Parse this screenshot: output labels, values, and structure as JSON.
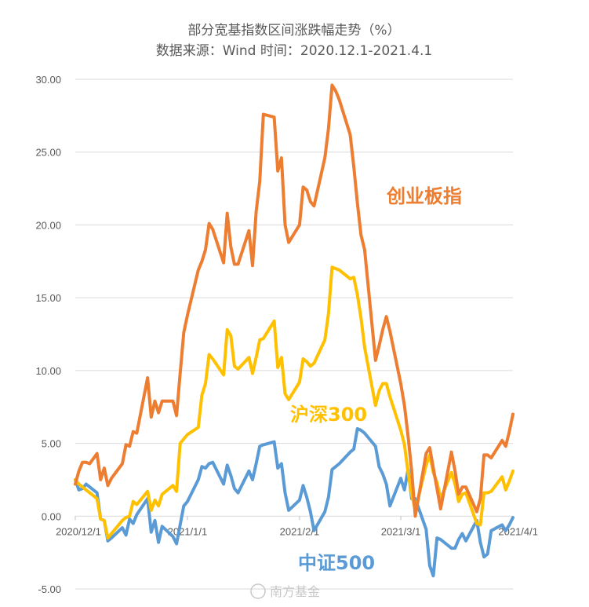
{
  "chart_data": {
    "type": "line",
    "title": "部分宽基指数区间涨跌幅走势（%）",
    "subtitle": "数据来源：Wind 时间：2020.12.1-2021.4.1",
    "xlabel": "",
    "ylabel": "",
    "ylim": [
      -5,
      30
    ],
    "y_ticks": [
      "30.00",
      "25.00",
      "20.00",
      "15.00",
      "10.00",
      "5.00",
      "0.00",
      "-5.00"
    ],
    "x_tick_labels": [
      "2020/12/1",
      "2021/1/1",
      "2021/2/1",
      "2021/3/1",
      "2021/4/1"
    ],
    "x_tick_days": [
      0,
      31,
      62,
      90,
      121
    ],
    "grid": true,
    "legend": "inline labels",
    "series": [
      {
        "name": "创业板指",
        "color": "#ed7d31",
        "x": [
          0,
          1,
          2,
          3,
          4,
          6,
          7,
          8,
          9,
          10,
          13,
          14,
          15,
          16,
          17,
          20,
          21,
          22,
          23,
          24,
          27,
          28,
          29,
          30,
          31,
          34,
          35,
          36,
          37,
          38,
          41,
          42,
          43,
          44,
          45,
          48,
          49,
          50,
          51,
          52,
          55,
          56,
          57,
          58,
          59,
          62,
          63,
          64,
          65,
          66,
          69,
          70,
          71,
          72,
          73,
          76,
          77,
          78,
          79,
          80,
          83,
          84,
          85,
          86,
          87,
          90,
          91,
          92,
          93,
          94,
          97,
          98,
          99,
          100,
          101,
          104,
          105,
          106,
          107,
          108,
          111,
          112,
          113,
          114,
          115,
          118,
          119,
          120,
          121
        ],
        "y": [
          2.2,
          3.1,
          3.7,
          3.7,
          3.6,
          4.3,
          2.5,
          3.3,
          2.1,
          2.6,
          3.6,
          4.9,
          4.8,
          5.8,
          5.7,
          9.5,
          6.8,
          7.9,
          7.1,
          7.9,
          7.9,
          6.9,
          9.8,
          12.6,
          13.8,
          16.9,
          17.5,
          18.3,
          20.1,
          19.7,
          17.4,
          20.8,
          18.5,
          17.3,
          17.3,
          19.6,
          17.2,
          20.9,
          23.0,
          27.6,
          27.4,
          23.7,
          24.6,
          20.0,
          18.8,
          20.0,
          22.6,
          22.4,
          21.6,
          21.3,
          24.6,
          26.6,
          29.6,
          29.2,
          28.6,
          26.2,
          24.0,
          21.5,
          19.3,
          18.3,
          10.7,
          11.7,
          12.8,
          13.7,
          12.7,
          9.1,
          7.6,
          5.5,
          3.1,
          0.0,
          4.3,
          4.7,
          3.3,
          1.9,
          0.5,
          4.4,
          3.1,
          1.5,
          2.0,
          2.0,
          0.3,
          1.2,
          4.2,
          4.2,
          4.0,
          5.2,
          4.8,
          5.8,
          7.0
        ]
      },
      {
        "name": "沪深300",
        "color": "#ffc000",
        "x": [
          0,
          1,
          2,
          3,
          4,
          6,
          7,
          8,
          9,
          10,
          13,
          14,
          15,
          16,
          17,
          20,
          21,
          22,
          23,
          24,
          27,
          28,
          29,
          30,
          31,
          34,
          35,
          36,
          37,
          38,
          41,
          42,
          43,
          44,
          45,
          48,
          49,
          50,
          51,
          52,
          55,
          56,
          57,
          58,
          59,
          62,
          63,
          64,
          65,
          66,
          69,
          70,
          71,
          72,
          73,
          76,
          77,
          78,
          79,
          80,
          83,
          84,
          85,
          86,
          87,
          90,
          91,
          92,
          93,
          94,
          97,
          98,
          99,
          100,
          101,
          104,
          105,
          106,
          107,
          108,
          111,
          112,
          113,
          114,
          115,
          118,
          119,
          120,
          121
        ],
        "y": [
          2.5,
          2.2,
          2.0,
          1.8,
          1.6,
          1.2,
          -0.2,
          -0.3,
          -1.5,
          -1.2,
          -0.3,
          -0.1,
          0.0,
          1.0,
          0.8,
          1.7,
          0.4,
          1.1,
          0.7,
          1.5,
          2.1,
          1.7,
          5.0,
          5.3,
          5.6,
          6.1,
          8.3,
          9.1,
          11.1,
          10.8,
          9.7,
          12.8,
          12.4,
          10.3,
          10.1,
          10.9,
          9.8,
          10.9,
          12.1,
          12.2,
          13.4,
          10.2,
          10.9,
          8.4,
          8.0,
          9.2,
          10.8,
          10.6,
          10.3,
          10.5,
          12.1,
          13.9,
          17.1,
          17.0,
          16.9,
          16.3,
          16.4,
          15.2,
          13.6,
          11.6,
          7.6,
          8.6,
          9.1,
          9.1,
          8.2,
          5.9,
          4.9,
          3.0,
          1.5,
          0.4,
          3.5,
          4.2,
          3.0,
          2.3,
          1.2,
          3.0,
          2.2,
          1.0,
          1.5,
          1.6,
          -0.5,
          -0.6,
          1.6,
          1.6,
          1.7,
          2.7,
          1.8,
          2.4,
          3.1
        ]
      },
      {
        "name": "中证500",
        "color": "#5b9bd5",
        "x": [
          0,
          1,
          2,
          3,
          4,
          6,
          7,
          8,
          9,
          10,
          13,
          14,
          15,
          16,
          17,
          20,
          21,
          22,
          23,
          24,
          27,
          28,
          29,
          30,
          31,
          34,
          35,
          36,
          37,
          38,
          41,
          42,
          43,
          44,
          45,
          48,
          49,
          50,
          51,
          52,
          55,
          56,
          57,
          58,
          59,
          62,
          63,
          64,
          65,
          66,
          69,
          70,
          71,
          72,
          73,
          76,
          77,
          78,
          79,
          80,
          83,
          84,
          85,
          86,
          87,
          90,
          91,
          92,
          93,
          94,
          97,
          98,
          99,
          100,
          101,
          104,
          105,
          106,
          107,
          108,
          111,
          112,
          113,
          114,
          115,
          118,
          119,
          120,
          121
        ],
        "y": [
          2.5,
          1.8,
          1.9,
          2.2,
          2.0,
          1.6,
          -0.2,
          -0.3,
          -1.7,
          -1.5,
          -0.8,
          -1.3,
          -0.2,
          -0.5,
          0.1,
          1.2,
          -1.1,
          -0.3,
          -1.8,
          -0.7,
          -1.4,
          -1.9,
          -0.6,
          0.7,
          1.0,
          2.5,
          3.4,
          3.3,
          3.6,
          3.7,
          2.2,
          3.5,
          2.8,
          1.9,
          1.6,
          3.1,
          2.5,
          3.6,
          4.8,
          4.9,
          5.1,
          3.3,
          3.6,
          1.6,
          0.4,
          1.1,
          2.1,
          1.3,
          0.3,
          -1.0,
          0.3,
          1.3,
          3.2,
          3.4,
          3.6,
          4.4,
          4.6,
          6.0,
          5.9,
          5.7,
          4.8,
          3.4,
          2.9,
          2.2,
          0.7,
          2.6,
          1.8,
          3.2,
          1.2,
          1.2,
          -0.9,
          -3.4,
          -4.1,
          -1.5,
          -1.6,
          -2.2,
          -2.2,
          -1.6,
          -1.2,
          -1.7,
          -0.3,
          -1.8,
          -2.8,
          -2.6,
          -1.0,
          -0.6,
          -1.0,
          -0.6,
          -0.1
        ]
      }
    ]
  },
  "labels": {
    "cyb": "创业板指",
    "hs300": "沪深300",
    "zz500": "中证500"
  },
  "watermark": "南方基金"
}
